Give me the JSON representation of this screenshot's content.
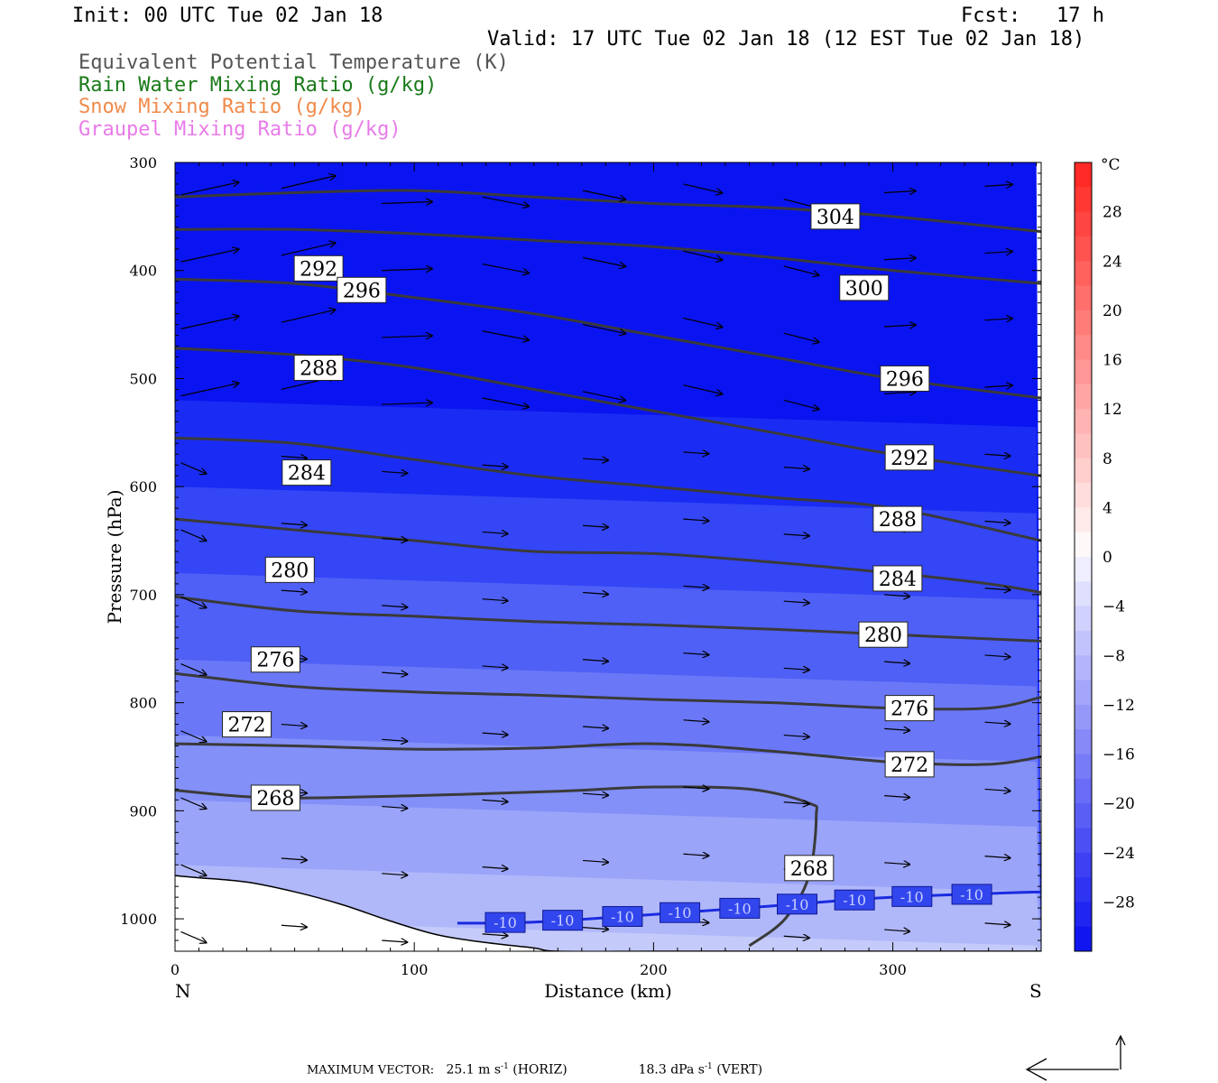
{
  "header": {
    "init": "Init: 00 UTC Tue 02 Jan 18",
    "fcst": "Fcst:   17 h",
    "valid": "Valid: 17 UTC Tue 02 Jan 18 (12 EST Tue 02 Jan 18)",
    "fields": [
      {
        "label": "Equivalent Potential Temperature (K)",
        "color": "#555555"
      },
      {
        "label": "Rain Water Mixing Ratio (g/kg)",
        "color": "#1a7a1a"
      },
      {
        "label": "Snow Mixing Ratio (g/kg)",
        "color": "#f08a4b"
      },
      {
        "label": "Graupel Mixing Ratio (g/kg)",
        "color": "#e87be8"
      }
    ]
  },
  "footer": {
    "max_vector_label": "MAXIMUM VECTOR:",
    "horiz": "25.1 m s",
    "horiz_sup": "-1",
    "horiz_tag": "(HORIZ)",
    "vert": "18.3 dPa s",
    "vert_sup": "-1",
    "vert_tag": "(VERT)"
  },
  "chart_data": {
    "type": "cross-section",
    "xlabel": "Distance (km)",
    "ylabel": "Pressure (hPa)",
    "x_range": [
      0,
      362
    ],
    "y_range": [
      300,
      1030
    ],
    "x_ticks": [
      0,
      100,
      200,
      300
    ],
    "y_ticks": [
      300,
      400,
      500,
      600,
      700,
      800,
      900,
      1000
    ],
    "endpoints": {
      "left": "N",
      "right": "S"
    },
    "colorbar": {
      "unit": "°C",
      "labels": [
        28,
        24,
        20,
        16,
        12,
        8,
        4,
        0,
        -4,
        -8,
        -12,
        -16,
        -20,
        -24,
        -28
      ],
      "range": [
        -32,
        32
      ],
      "step": 2
    },
    "theta_e_contours": [
      {
        "value": 268,
        "x": [
          0,
          40,
          100,
          160,
          200,
          240,
          265,
          268,
          265,
          255,
          240
        ],
        "p": [
          881,
          888,
          886,
          882,
          878,
          880,
          893,
          905,
          960,
          1000,
          1025
        ],
        "label_at": [
          42,
          888
        ]
      },
      {
        "value": 272,
        "x": [
          0,
          50,
          100,
          150,
          200,
          250,
          300,
          340,
          362
        ],
        "p": [
          838,
          840,
          843,
          842,
          838,
          845,
          855,
          857,
          850
        ],
        "label_at": [
          30,
          820
        ]
      },
      {
        "value": 276,
        "x": [
          0,
          50,
          100,
          150,
          200,
          250,
          300,
          340,
          362
        ],
        "p": [
          773,
          785,
          790,
          793,
          797,
          800,
          805,
          805,
          795
        ],
        "label_at": [
          42,
          760
        ]
      },
      {
        "value": 280,
        "x": [
          0,
          50,
          100,
          150,
          200,
          250,
          300,
          362
        ],
        "p": [
          702,
          715,
          720,
          725,
          728,
          732,
          737,
          743
        ],
        "label_at": [
          48,
          677
        ]
      },
      {
        "value": 284,
        "x": [
          0,
          50,
          100,
          150,
          200,
          250,
          300,
          340,
          362
        ],
        "p": [
          630,
          640,
          650,
          660,
          662,
          670,
          680,
          690,
          698
        ],
        "label_at": [
          55,
          587
        ]
      },
      {
        "value": 288,
        "x": [
          0,
          50,
          100,
          150,
          200,
          250,
          300,
          362
        ],
        "p": [
          555,
          560,
          575,
          590,
          600,
          610,
          620,
          650
        ],
        "label_at": [
          60,
          490
        ]
      },
      {
        "value": 292,
        "x": [
          0,
          50,
          100,
          150,
          200,
          250,
          300,
          362
        ],
        "p": [
          472,
          478,
          490,
          510,
          530,
          550,
          570,
          590
        ],
        "label_at": [
          60,
          398
        ]
      },
      {
        "value": 296,
        "x": [
          0,
          50,
          100,
          150,
          200,
          250,
          300,
          362
        ],
        "p": [
          408,
          412,
          425,
          440,
          460,
          480,
          500,
          518
        ],
        "label_at": [
          78,
          418
        ]
      },
      {
        "value": 300,
        "x": [
          0,
          50,
          100,
          150,
          200,
          250,
          300,
          362
        ],
        "p": [
          362,
          362,
          366,
          372,
          378,
          388,
          400,
          412
        ],
        "label_at": [
          288,
          416
        ]
      },
      {
        "value": 304,
        "x": [
          0,
          50,
          100,
          150,
          200,
          250,
          300,
          362
        ],
        "p": [
          332,
          328,
          326,
          332,
          338,
          342,
          350,
          364
        ],
        "label_at": [
          276,
          350
        ]
      }
    ],
    "extra_labels": [
      {
        "value": 296,
        "at": [
          305,
          500
        ]
      },
      {
        "value": 292,
        "at": [
          307,
          573
        ]
      },
      {
        "value": 288,
        "at": [
          302,
          630
        ]
      },
      {
        "value": 284,
        "at": [
          302,
          685
        ]
      },
      {
        "value": 280,
        "at": [
          296,
          737
        ]
      },
      {
        "value": 276,
        "at": [
          307,
          805
        ]
      },
      {
        "value": 272,
        "at": [
          307,
          857
        ]
      },
      {
        "value": 268,
        "at": [
          265,
          953
        ]
      }
    ],
    "isotherm_minus10": {
      "value": -10,
      "x": [
        118,
        150,
        200,
        250,
        300,
        362
      ],
      "p": [
        1004,
        1003,
        996,
        988,
        980,
        975
      ],
      "label_x": [
        138,
        162,
        187,
        211,
        236,
        260,
        284,
        308,
        333
      ]
    },
    "terrain": {
      "x": [
        0,
        10,
        30,
        50,
        70,
        90,
        110,
        130,
        150,
        160,
        200,
        240,
        362
      ],
      "p": [
        960,
        962,
        966,
        975,
        987,
        1002,
        1015,
        1022,
        1027,
        1030,
        1030,
        1030,
        1030
      ]
    },
    "wind_vectors": "field (arrows) showing horizontal/vertical circulation; max 25.1 m s-1 horiz, 18.3 dPa s-1 vert"
  }
}
